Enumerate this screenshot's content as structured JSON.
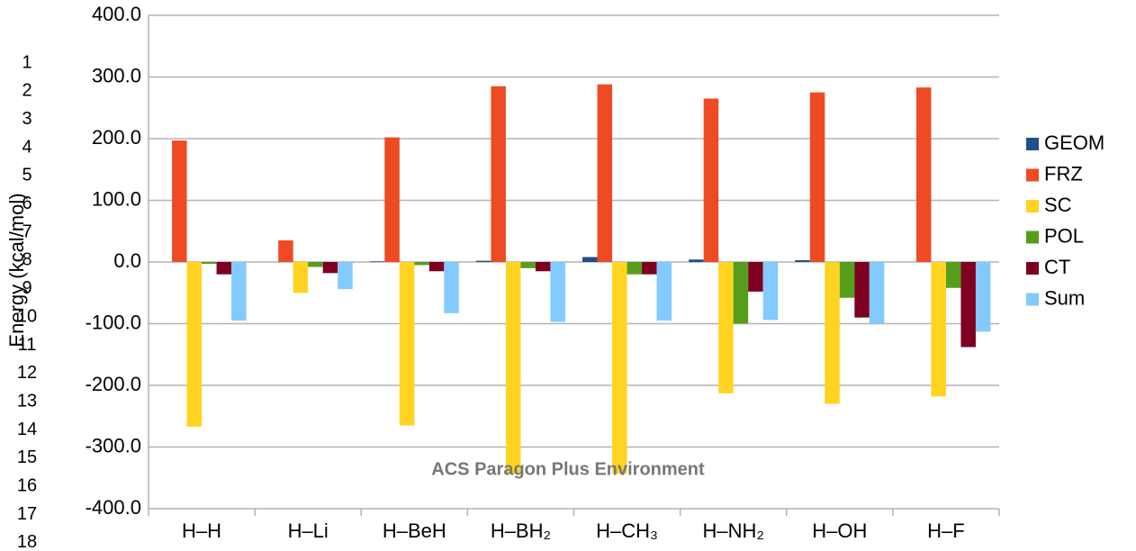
{
  "line_numbers": [
    "1",
    "2",
    "3",
    "4",
    "5",
    "6",
    "7",
    "8",
    "9",
    "10",
    "11",
    "12",
    "13",
    "14",
    "15",
    "16",
    "17",
    "18"
  ],
  "watermark": "ACS Paragon Plus Environment",
  "chart_data": {
    "type": "bar",
    "ylabel": "Energy (kcal/mol)",
    "categories": [
      "H–H",
      "H–Li",
      "H–BeH",
      "H–BH₂",
      "H–CH₃",
      "H–NH₂",
      "H–OH",
      "H–F"
    ],
    "series": [
      {
        "name": "GEOM",
        "color": "#1f4e8c",
        "values": [
          0,
          0,
          1,
          2,
          8,
          4,
          3,
          0
        ]
      },
      {
        "name": "FRZ",
        "color": "#ee4a23",
        "values": [
          197,
          35,
          202,
          285,
          288,
          265,
          275,
          283
        ]
      },
      {
        "name": "SC",
        "color": "#ffd320",
        "values": [
          -267,
          -50,
          -265,
          -343,
          -343,
          -213,
          -230,
          -218
        ]
      },
      {
        "name": "POL",
        "color": "#579d1c",
        "values": [
          -3,
          -8,
          -5,
          -10,
          -20,
          -100,
          -58,
          -42
        ]
      },
      {
        "name": "CT",
        "color": "#7e0021",
        "values": [
          -20,
          -18,
          -15,
          -15,
          -20,
          -48,
          -90,
          -138
        ]
      },
      {
        "name": "Sum",
        "color": "#83caff",
        "values": [
          -95,
          -44,
          -83,
          -97,
          -95,
          -94,
          -100,
          -113
        ]
      }
    ],
    "ylim": [
      -400,
      400
    ],
    "yticks": [
      {
        "value": -400,
        "label": "-400.0"
      },
      {
        "value": -300,
        "label": "-300.0"
      },
      {
        "value": -200,
        "label": "-200.0"
      },
      {
        "value": -100,
        "label": "-100.0"
      },
      {
        "value": 0,
        "label": "0.0"
      },
      {
        "value": 100,
        "label": "100.0"
      },
      {
        "value": 200,
        "label": "200.0"
      },
      {
        "value": 300,
        "label": "300.0"
      },
      {
        "value": 400,
        "label": "400.0"
      }
    ],
    "grid": true,
    "legend": "right"
  }
}
